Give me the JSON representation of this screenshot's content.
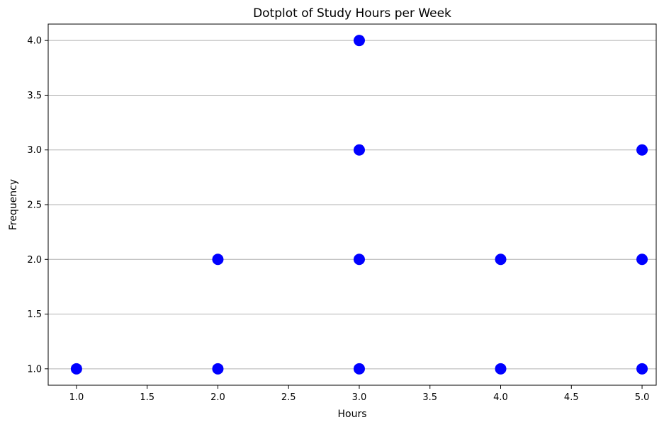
{
  "chart_data": {
    "type": "scatter",
    "title": "Dotplot of Study Hours per Week",
    "xlabel": "Hours",
    "ylabel": "Frequency",
    "xlim": [
      0.8,
      5.1
    ],
    "ylim": [
      0.85,
      4.15
    ],
    "xticks": [
      "1.0",
      "1.5",
      "2.0",
      "2.5",
      "3.0",
      "3.5",
      "4.0",
      "4.5",
      "5.0"
    ],
    "yticks": [
      "1.0",
      "1.5",
      "2.0",
      "2.5",
      "3.0",
      "3.5",
      "4.0"
    ],
    "grid": "horizontal",
    "legend": "none",
    "marker_color": "#0000ff",
    "points": [
      {
        "x": 1,
        "y": 1
      },
      {
        "x": 2,
        "y": 1
      },
      {
        "x": 2,
        "y": 2
      },
      {
        "x": 3,
        "y": 1
      },
      {
        "x": 3,
        "y": 2
      },
      {
        "x": 3,
        "y": 3
      },
      {
        "x": 3,
        "y": 4
      },
      {
        "x": 4,
        "y": 1
      },
      {
        "x": 4,
        "y": 2
      },
      {
        "x": 5,
        "y": 1
      },
      {
        "x": 5,
        "y": 2
      },
      {
        "x": 5,
        "y": 3
      }
    ]
  }
}
